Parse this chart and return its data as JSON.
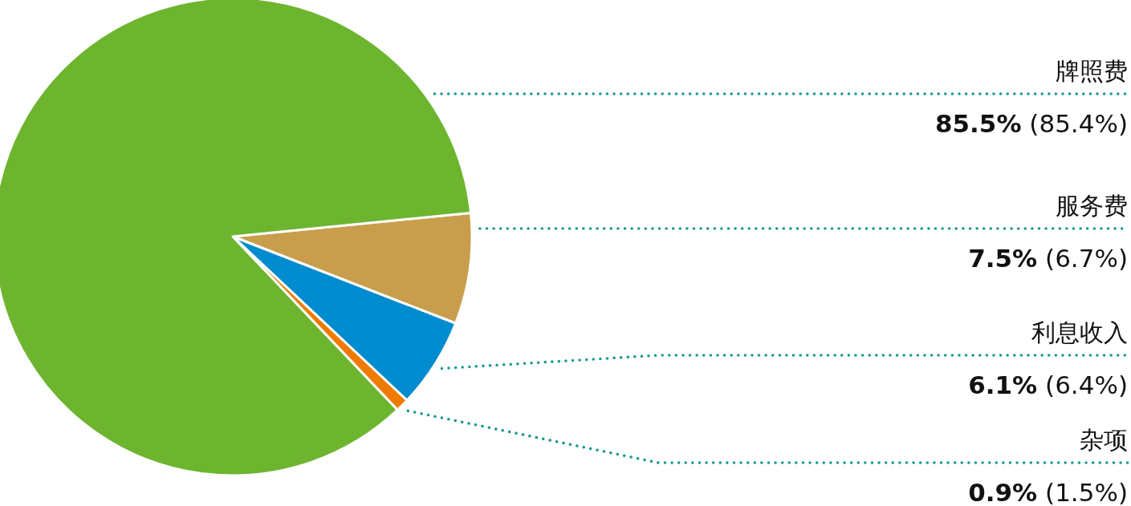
{
  "chart_data": {
    "type": "pie",
    "categories": [
      "服务费",
      "利息收入",
      "杂项",
      "牌照费"
    ],
    "values": [
      7.5,
      6.1,
      0.9,
      85.5
    ],
    "colors": [
      "#c89e4c",
      "#008ccf",
      "#ee7b00",
      "#6db52f"
    ],
    "value_labels": [
      "7.5% (6.7%)",
      "6.1% (6.4%)",
      "0.9% (1.5%)",
      "85.5% (85.4%)"
    ]
  }
}
